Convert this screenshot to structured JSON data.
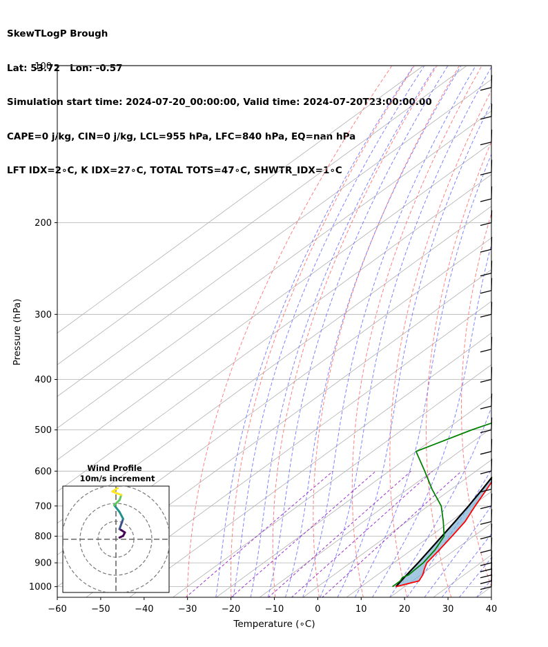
{
  "header": {
    "line1": "SkewTLogP Brough",
    "line2": "Lat: 53.72   Lon: -0.57",
    "line3": "Simulation start time: 2024-07-20_00:00:00, Valid time: 2024-07-20T23:00:00.00",
    "line4": "CAPE=0 j/kg, CIN=0 j/kg, LCL=955 hPa, LFC=840 hPa, EQ=nan hPa",
    "line5": "LFT IDX=2∘C, K IDX=27∘C, TOTAL TOTS=47∘C, SHWTR_IDX=1∘C"
  },
  "chart_data": {
    "type": "line",
    "subtype": "skew-t log-p",
    "xlabel": "Temperature (∘C)",
    "ylabel": "Pressure (hPa)",
    "xlim": [
      -60,
      40
    ],
    "ylim": [
      1050,
      100
    ],
    "y_scale": "log",
    "x_ticks": [
      -60,
      -50,
      -40,
      -30,
      -20,
      -10,
      0,
      10,
      20,
      30,
      40
    ],
    "x_tick_labels": [
      "−60",
      "−50",
      "−40",
      "−30",
      "−20",
      "−10",
      "0",
      "10",
      "20",
      "30",
      "40"
    ],
    "y_ticks": [
      1000,
      900,
      800,
      700,
      600,
      500,
      400,
      300,
      200,
      100
    ],
    "y_tick_labels": [
      "1000",
      "900",
      "800",
      "700",
      "600",
      "500",
      "400",
      "300",
      "200",
      "100"
    ],
    "grid": true,
    "colors": {
      "temperature": "#ff0000",
      "dewpoint": "#008000",
      "parcel": "#000000",
      "cape_fill": "#7eb0d5",
      "dry_adiabats": "#ff6a6a",
      "moist_adiabats": "#6b6bff",
      "mixing_ratio": "#9933cc",
      "isotherms": "#aaaaaa"
    },
    "series": [
      {
        "key": "temperature",
        "points": [
          [
            1000,
            18.0
          ],
          [
            975,
            21.5
          ],
          [
            950,
            20.5
          ],
          [
            925,
            19.0
          ],
          [
            900,
            17.6
          ],
          [
            850,
            16.4
          ],
          [
            800,
            15.0
          ],
          [
            750,
            13.4
          ],
          [
            700,
            10.8
          ],
          [
            650,
            8.2
          ],
          [
            600,
            5.3
          ],
          [
            550,
            2.2
          ],
          [
            500,
            -1.6
          ],
          [
            475,
            -4.0
          ],
          [
            450,
            -6.0
          ],
          [
            425,
            -8.0
          ],
          [
            400,
            -11.2
          ],
          [
            350,
            -17.8
          ],
          [
            300,
            -26.2
          ],
          [
            250,
            -36.6
          ],
          [
            225,
            -43.8
          ],
          [
            215,
            -44.5
          ],
          [
            200,
            -45.6
          ],
          [
            180,
            -46.5
          ],
          [
            170,
            -46.2
          ],
          [
            160,
            -45.8
          ],
          [
            150,
            -44.7
          ],
          [
            140,
            -42.7
          ],
          [
            130,
            -40.3
          ],
          [
            120,
            -37.9
          ],
          [
            110,
            -34.9
          ],
          [
            100,
            -32.2
          ]
        ]
      },
      {
        "key": "dewpoint",
        "points": [
          [
            1000,
            17.2
          ],
          [
            975,
            17.2
          ],
          [
            960,
            16.6
          ],
          [
            950,
            17.2
          ],
          [
            900,
            16.8
          ],
          [
            850,
            15.4
          ],
          [
            800,
            13.2
          ],
          [
            750,
            8.4
          ],
          [
            700,
            3.0
          ],
          [
            650,
            -4.4
          ],
          [
            600,
            -11.8
          ],
          [
            550,
            -20.0
          ],
          [
            500,
            -14.0
          ],
          [
            475,
            -9.8
          ],
          [
            450,
            -13.6
          ],
          [
            400,
            -22.4
          ],
          [
            350,
            -31.8
          ],
          [
            320,
            -39.6
          ],
          [
            300,
            -40.5
          ],
          [
            250,
            -48.4
          ],
          [
            220,
            -56.0
          ],
          [
            200,
            -59.3
          ],
          [
            190,
            -61.5
          ],
          [
            180,
            -65.0
          ],
          [
            165,
            -69.1
          ],
          [
            150,
            -72.8
          ],
          [
            140,
            -71.9
          ],
          [
            130,
            -71.2
          ],
          [
            120,
            -68.5
          ],
          [
            110,
            -65.7
          ],
          [
            100,
            -63.1
          ]
        ]
      },
      {
        "key": "parcel",
        "points": [
          [
            1000,
            18.0
          ],
          [
            955,
            16.9
          ],
          [
            900,
            15.6
          ],
          [
            850,
            14.2
          ],
          [
            800,
            12.7
          ],
          [
            750,
            11.1
          ],
          [
            700,
            9.3
          ],
          [
            650,
            7.2
          ],
          [
            600,
            4.8
          ],
          [
            550,
            1.9
          ],
          [
            500,
            -1.5
          ],
          [
            450,
            -5.6
          ],
          [
            400,
            -10.6
          ],
          [
            350,
            -16.7
          ],
          [
            300,
            -24.3
          ],
          [
            250,
            -33.8
          ],
          [
            200,
            -45.7
          ],
          [
            150,
            -61.0
          ],
          [
            100,
            -82.0
          ]
        ]
      }
    ],
    "wind_barbs": [
      {
        "p": 1000,
        "label": "barb"
      },
      {
        "p": 975,
        "label": "barb"
      },
      {
        "p": 950,
        "label": "barb"
      },
      {
        "p": 925,
        "label": "barb"
      },
      {
        "p": 900,
        "label": "barb"
      },
      {
        "p": 850,
        "label": "barb"
      },
      {
        "p": 800,
        "label": "barb"
      },
      {
        "p": 750,
        "label": "barb"
      },
      {
        "p": 700,
        "label": "barb"
      },
      {
        "p": 650,
        "label": "barb"
      },
      {
        "p": 600,
        "label": "barb"
      },
      {
        "p": 550,
        "label": "barb"
      },
      {
        "p": 500,
        "label": "barb"
      },
      {
        "p": 450,
        "label": "barb"
      },
      {
        "p": 400,
        "label": "barb"
      },
      {
        "p": 350,
        "label": "barb"
      },
      {
        "p": 300,
        "label": "barb"
      },
      {
        "p": 270,
        "label": "barb"
      },
      {
        "p": 250,
        "label": "barb"
      },
      {
        "p": 225,
        "label": "barb"
      },
      {
        "p": 200,
        "label": "barb"
      },
      {
        "p": 180,
        "label": "barb"
      },
      {
        "p": 160,
        "label": "barb"
      },
      {
        "p": 140,
        "label": "barb"
      },
      {
        "p": 125,
        "label": "barb"
      },
      {
        "p": 110,
        "label": "barb"
      }
    ],
    "hodograph": {
      "title": "Wind Profile",
      "subtitle": "10m/s increment",
      "rings_m_s": [
        10,
        20,
        30
      ],
      "trace_colors": [
        "#440154",
        "#3b528b",
        "#21918c",
        "#5ec962",
        "#fde725"
      ],
      "points_uv": [
        [
          2,
          1
        ],
        [
          4,
          2
        ],
        [
          5,
          4
        ],
        [
          2,
          6
        ],
        [
          3,
          9
        ],
        [
          4,
          12
        ],
        [
          2,
          16
        ],
        [
          -1,
          20
        ],
        [
          2,
          23
        ],
        [
          3,
          26
        ],
        [
          -2,
          28
        ],
        [
          1,
          30
        ]
      ]
    }
  }
}
